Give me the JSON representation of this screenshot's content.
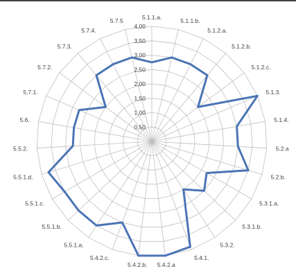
{
  "chart_data": {
    "type": "radar",
    "categories": [
      "5.1.1.a.",
      "5.1.1.b.",
      "5.1.2.a.",
      "5.1.2.b.",
      "5.1.2.c.",
      "5.1.3.",
      "5.1.4.",
      "5.2.a",
      "5.2.b.",
      "5.3.1.a.",
      "5.3.1.b.",
      "5.3.2.",
      "5.4.1.",
      "5.4.2.a",
      "5.4.2.b.",
      "5.4.2.c.",
      "5.5.1.a.",
      "5.5.1.b.",
      "5.5.1.c.",
      "5.5.1.d.",
      "5.5.2.",
      "5.6.",
      "5.7.1.",
      "5.7.2.",
      "5.7.3.",
      "5.7.4.",
      "5.7.5"
    ],
    "tick_labels": [
      "0,50",
      "1,00",
      "1,50",
      "2,00",
      "2,50",
      "3,00",
      "3,50",
      "4,00"
    ],
    "rmax": 4.0,
    "rmin": 0.0,
    "grid": true,
    "legend": "none",
    "series": [
      {
        "color": "#4a74b5",
        "values": [
          2.75,
          3.0,
          3.0,
          3.0,
          2.0,
          4.0,
          3.0,
          3.0,
          3.5,
          2.2,
          2.5,
          2.0,
          3.9,
          4.0,
          4.0,
          3.0,
          3.5,
          3.5,
          3.5,
          3.75,
          2.75,
          2.75,
          2.75,
          2.0,
          3.0,
          3.0,
          3.0
        ]
      }
    ]
  }
}
